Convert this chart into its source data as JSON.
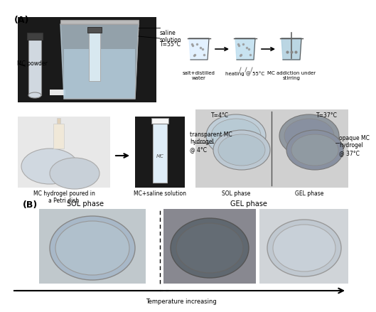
{
  "title_A": "(A)",
  "title_B": "(B)",
  "bg_color": "#ffffff",
  "panel_A_labels": {
    "mc_powder": "MC powder",
    "saline_solution": "saline\nsolution",
    "temp_55": "T=55°C",
    "salt_distilled": "salt+distilled\nwater",
    "heating": "heating @ 55°C",
    "mc_addiction": "MC addiction under\nstirring",
    "mc_hydrogel_poured": "MC hydrogel poured in\na Petri dish",
    "mc_saline": "MC+saline solution",
    "T4": "T=4°C",
    "T37": "T=37°C",
    "transparent_mc": "transparent MC\nhydrogel\n@ 4°C",
    "opaque_mc": "opaque MC\nhydrogel\n@ 37°C",
    "sol_phase_A": "SOL phase",
    "gel_phase_A": "GEL phase"
  },
  "panel_B_labels": {
    "sol_phase": "SOL phase",
    "gel_phase": "GEL phase",
    "temp_increasing": "Temperature increasing"
  },
  "photo_colors": {
    "dark_bg": "#1a1a1a",
    "petri_transparent": "#c8d8e0",
    "petri_opaque": "#b0b8c0",
    "petri_sol": "#a8b8c0",
    "petri_gel_dark": "#707880",
    "petri_gel_light": "#c8d0d8",
    "beaker_color": "#d0e8f0",
    "tube_color": "#e8f0f8",
    "arrow_color": "#000000",
    "diagram_color": "#555555"
  }
}
